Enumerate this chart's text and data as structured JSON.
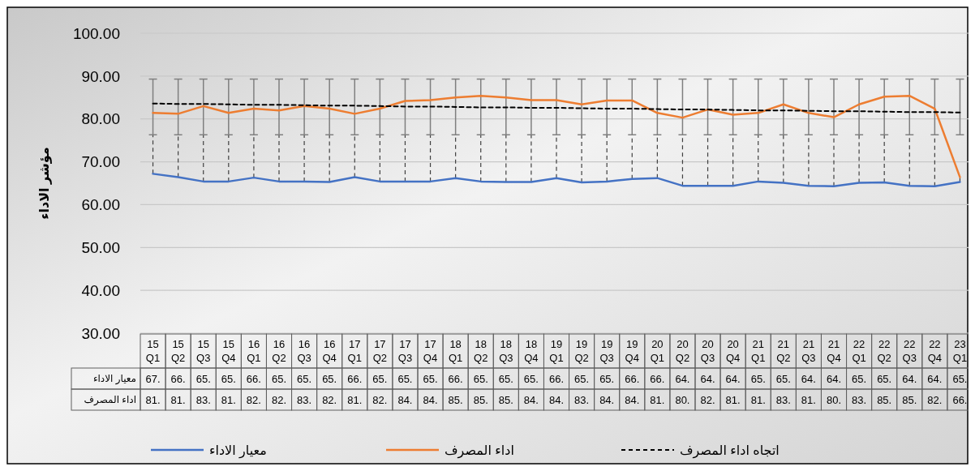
{
  "chart_data": {
    "type": "line",
    "ylabel": "مؤشر الاداء",
    "categories": [
      "15 Q1",
      "15 Q2",
      "15 Q3",
      "15 Q4",
      "16 Q1",
      "16 Q2",
      "16 Q3",
      "16 Q4",
      "17 Q1",
      "17 Q2",
      "17 Q3",
      "17 Q4",
      "18 Q1",
      "18 Q2",
      "18 Q3",
      "18 Q4",
      "19 Q1",
      "19 Q2",
      "19 Q3",
      "19 Q4",
      "20 Q1",
      "20 Q2",
      "20 Q3",
      "20 Q4",
      "21 Q1",
      "21 Q2",
      "21 Q3",
      "21 Q4",
      "22 Q1",
      "22 Q2",
      "22 Q3",
      "22 Q4",
      "23 Q1"
    ],
    "ylim": [
      30,
      100
    ],
    "yticks": [
      {
        "value": 30,
        "label": "30.00"
      },
      {
        "value": 40,
        "label": "40.00"
      },
      {
        "value": 50,
        "label": "50.00"
      },
      {
        "value": 60,
        "label": "60.00"
      },
      {
        "value": 70,
        "label": "70.00"
      },
      {
        "value": 80,
        "label": "80.00"
      },
      {
        "value": 90,
        "label": "90.00"
      },
      {
        "value": 100,
        "label": "100.00"
      }
    ],
    "grid": "y",
    "legend": "bottom",
    "marker": "none",
    "series": [
      {
        "name": "معيار الاداء",
        "color": "#4472c4",
        "values": [
          67.2,
          66.4,
          65.4,
          65.4,
          66.3,
          65.4,
          65.4,
          65.3,
          66.4,
          65.4,
          65.4,
          65.4,
          66.2,
          65.4,
          65.3,
          65.3,
          66.2,
          65.2,
          65.4,
          66.0,
          66.2,
          64.4,
          64.4,
          64.4,
          65.4,
          65.1,
          64.4,
          64.3,
          65.1,
          65.2,
          64.4,
          64.3,
          65.3
        ],
        "value_labels": [
          "67.",
          "66.",
          "65.",
          "65.",
          "66.",
          "65.",
          "65.",
          "65.",
          "66.",
          "65.",
          "65.",
          "65.",
          "66.",
          "65.",
          "65.",
          "65.",
          "66.",
          "65.",
          "65.",
          "66.",
          "66.",
          "64.",
          "64.",
          "64.",
          "65.",
          "65.",
          "64.",
          "64.",
          "65.",
          "65.",
          "64.",
          "64.",
          "65."
        ]
      },
      {
        "name": "اداء المصرف",
        "color": "#ed7d31",
        "values": [
          81.4,
          81.2,
          83.0,
          81.4,
          82.4,
          82.0,
          83.0,
          82.4,
          81.2,
          82.4,
          84.2,
          84.4,
          85.0,
          85.4,
          85.0,
          84.4,
          84.4,
          83.4,
          84.3,
          84.3,
          81.4,
          80.3,
          82.2,
          81.0,
          81.4,
          83.4,
          81.4,
          80.4,
          83.4,
          85.2,
          85.4,
          82.4,
          66.4
        ],
        "value_labels": [
          "81.",
          "81.",
          "83.",
          "81.",
          "82.",
          "82.",
          "83.",
          "82.",
          "81.",
          "82.",
          "84.",
          "84.",
          "85.",
          "85.",
          "85.",
          "84.",
          "84.",
          "83.",
          "84.",
          "84.",
          "81.",
          "80.",
          "82.",
          "81.",
          "81.",
          "83.",
          "81.",
          "80.",
          "83.",
          "85.",
          "85.",
          "82.",
          "66."
        ],
        "errors": [
          [
            76.3,
            89.3
          ],
          [
            76.3,
            89.3
          ],
          [
            76.3,
            89.3
          ],
          [
            76.3,
            89.3
          ],
          [
            76.3,
            89.3
          ],
          [
            76.3,
            89.3
          ],
          [
            76.3,
            89.3
          ],
          [
            76.3,
            89.3
          ],
          [
            76.3,
            89.3
          ],
          [
            76.3,
            89.3
          ],
          [
            76.3,
            89.3
          ],
          [
            76.3,
            89.3
          ],
          [
            76.3,
            89.3
          ],
          [
            76.3,
            89.3
          ],
          [
            76.3,
            89.3
          ],
          [
            76.3,
            89.3
          ],
          [
            76.3,
            89.3
          ],
          [
            76.3,
            89.3
          ],
          [
            76.3,
            89.3
          ],
          [
            76.3,
            89.3
          ],
          [
            76.3,
            89.3
          ],
          [
            76.3,
            89.3
          ],
          [
            76.3,
            89.3
          ],
          [
            76.3,
            89.3
          ],
          [
            76.3,
            89.3
          ],
          [
            76.3,
            89.3
          ],
          [
            76.3,
            89.3
          ],
          [
            76.3,
            89.3
          ],
          [
            76.3,
            89.3
          ],
          [
            76.3,
            89.3
          ],
          [
            76.3,
            89.3
          ],
          [
            76.3,
            89.3
          ],
          [
            76.3,
            89.3
          ]
        ]
      },
      {
        "name": "اتجاه اداء المصرف",
        "type": "line",
        "line_style": "dashed",
        "color": "#000000",
        "values": [
          83.6,
          83.5,
          83.5,
          83.4,
          83.3,
          83.3,
          83.2,
          83.1,
          83.1,
          83.0,
          82.9,
          82.9,
          82.8,
          82.7,
          82.7,
          82.6,
          82.6,
          82.5,
          82.4,
          82.4,
          82.3,
          82.2,
          82.2,
          82.1,
          82.0,
          82.0,
          81.9,
          81.8,
          81.8,
          81.7,
          81.6,
          81.6,
          81.5
        ]
      }
    ]
  }
}
